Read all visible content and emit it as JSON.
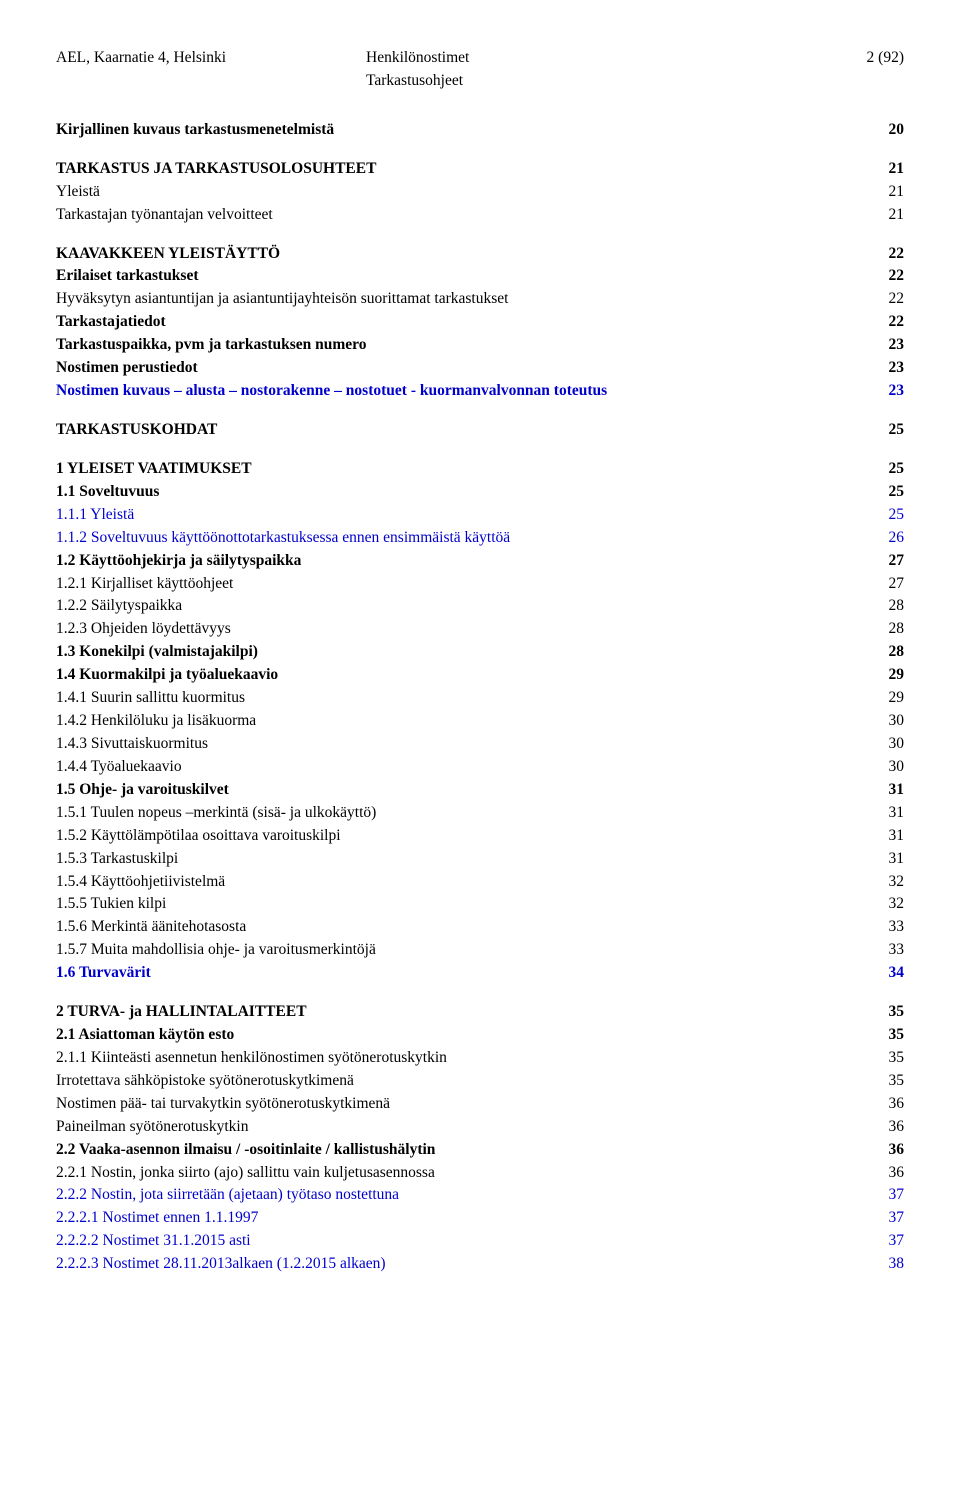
{
  "header": {
    "left": "AEL, Kaarnatie 4, Helsinki",
    "center1": "Henkilönostimet",
    "center2": "Tarkastusohjeet",
    "right": "2 (92)"
  },
  "entries": [
    {
      "label": "Kirjallinen kuvaus tarkastusmenetelmistä",
      "page": "20",
      "bold": true,
      "gap": "none",
      "blue": false
    },
    {
      "label": "TARKASTUS JA TARKASTUSOLOSUHTEET",
      "page": "21",
      "bold": true,
      "gap": "lg",
      "blue": false
    },
    {
      "label": "Yleistä",
      "page": "21",
      "bold": false,
      "gap": "sm",
      "blue": false
    },
    {
      "label": "Tarkastajan työnantajan velvoitteet",
      "page": "21",
      "bold": false,
      "gap": "sm",
      "blue": false
    },
    {
      "label": "KAAVAKKEEN YLEISTÄYTTÖ",
      "page": "22",
      "bold": true,
      "gap": "lg",
      "blue": false
    },
    {
      "label": "Erilaiset tarkastukset",
      "page": "22",
      "bold": true,
      "gap": "sm",
      "blue": false
    },
    {
      "label": "Hyväksytyn asiantuntijan ja asiantuntijayhteisön suorittamat tarkastukset",
      "page": "22",
      "bold": false,
      "gap": "sm",
      "blue": false
    },
    {
      "label": "Tarkastajatiedot",
      "page": "22",
      "bold": true,
      "gap": "sm",
      "blue": false
    },
    {
      "label": "Tarkastuspaikka, pvm ja tarkastuksen numero",
      "page": "23",
      "bold": true,
      "gap": "sm",
      "blue": false
    },
    {
      "label": "Nostimen perustiedot",
      "page": "23",
      "bold": true,
      "gap": "sm",
      "blue": false
    },
    {
      "label": "Nostimen kuvaus – alusta – nostorakenne – nostotuet - kuormanvalvonnan toteutus",
      "page": "23",
      "bold": true,
      "gap": "sm",
      "blue": true
    },
    {
      "label": "TARKASTUSKOHDAT",
      "page": "25",
      "bold": true,
      "gap": "lg",
      "blue": false
    },
    {
      "label": "1 YLEISET VAATIMUKSET",
      "page": "25",
      "bold": true,
      "gap": "lg",
      "blue": false
    },
    {
      "label": "1.1 Soveltuvuus",
      "page": "25",
      "bold": true,
      "gap": "sm",
      "blue": false
    },
    {
      "label": "1.1.1 Yleistä",
      "page": "25",
      "bold": false,
      "gap": "sm",
      "blue": true
    },
    {
      "label": "1.1.2 Soveltuvuus käyttöönottotarkastuksessa ennen ensimmäistä käyttöä",
      "page": "26",
      "bold": false,
      "gap": "sm",
      "blue": true
    },
    {
      "label": "1.2 Käyttöohjekirja ja säilytyspaikka",
      "page": "27",
      "bold": true,
      "gap": "sm",
      "blue": false
    },
    {
      "label": "1.2.1 Kirjalliset käyttöohjeet",
      "page": "27",
      "bold": false,
      "gap": "sm",
      "blue": false
    },
    {
      "label": "1.2.2 Säilytyspaikka",
      "page": "28",
      "bold": false,
      "gap": "sm",
      "blue": false
    },
    {
      "label": "1.2.3 Ohjeiden löydettävyys",
      "page": "28",
      "bold": false,
      "gap": "sm",
      "blue": false
    },
    {
      "label": "1.3 Konekilpi (valmistajakilpi)",
      "page": "28",
      "bold": true,
      "gap": "sm",
      "blue": false
    },
    {
      "label": "1.4 Kuormakilpi ja työaluekaavio",
      "page": "29",
      "bold": true,
      "gap": "sm",
      "blue": false
    },
    {
      "label": "1.4.1 Suurin sallittu kuormitus",
      "page": "29",
      "bold": false,
      "gap": "sm",
      "blue": false
    },
    {
      "label": "1.4.2 Henkilöluku ja lisäkuorma",
      "page": "30",
      "bold": false,
      "gap": "sm",
      "blue": false
    },
    {
      "label": "1.4.3 Sivuttaiskuormitus",
      "page": "30",
      "bold": false,
      "gap": "sm",
      "blue": false
    },
    {
      "label": "1.4.4 Työaluekaavio",
      "page": "30",
      "bold": false,
      "gap": "sm",
      "blue": false
    },
    {
      "label": "1.5 Ohje- ja varoituskilvet",
      "page": "31",
      "bold": true,
      "gap": "sm",
      "blue": false
    },
    {
      "label": "1.5.1 Tuulen nopeus –merkintä (sisä- ja ulkokäyttö)",
      "page": "31",
      "bold": false,
      "gap": "sm",
      "blue": false
    },
    {
      "label": "1.5.2 Käyttölämpötilaa osoittava varoituskilpi",
      "page": "31",
      "bold": false,
      "gap": "sm",
      "blue": false
    },
    {
      "label": "1.5.3 Tarkastuskilpi",
      "page": "31",
      "bold": false,
      "gap": "sm",
      "blue": false
    },
    {
      "label": "1.5.4 Käyttöohjetiivistelmä",
      "page": "32",
      "bold": false,
      "gap": "sm",
      "blue": false
    },
    {
      "label": "1.5.5 Tukien kilpi",
      "page": "32",
      "bold": false,
      "gap": "sm",
      "blue": false
    },
    {
      "label": "1.5.6 Merkintä äänitehotasosta",
      "page": "33",
      "bold": false,
      "gap": "sm",
      "blue": false
    },
    {
      "label": "1.5.7 Muita mahdollisia ohje- ja varoitusmerkintöjä",
      "page": "33",
      "bold": false,
      "gap": "sm",
      "blue": false
    },
    {
      "label": "1.6 Turvavärit",
      "page": "34",
      "bold": true,
      "gap": "sm",
      "blue": true
    },
    {
      "label": "2 TURVA- ja HALLINTALAITTEET",
      "page": "35",
      "bold": true,
      "gap": "lg",
      "blue": false
    },
    {
      "label": "2.1 Asiattoman käytön esto",
      "page": "35",
      "bold": true,
      "gap": "sm",
      "blue": false
    },
    {
      "label": "2.1.1 Kiinteästi asennetun henkilönostimen syötönerotuskytkin",
      "page": "35",
      "bold": false,
      "gap": "sm",
      "blue": false
    },
    {
      "label": "Irrotettava sähköpistoke syötönerotuskytkimenä",
      "page": "35",
      "bold": false,
      "gap": "sm",
      "blue": false
    },
    {
      "label": "Nostimen pää- tai turvakytkin syötönerotuskytkimenä",
      "page": "36",
      "bold": false,
      "gap": "sm",
      "blue": false
    },
    {
      "label": "Paineilman syötönerotuskytkin",
      "page": "36",
      "bold": false,
      "gap": "sm",
      "blue": false
    },
    {
      "label": "2.2 Vaaka-asennon ilmaisu / -osoitinlaite / kallistushälytin",
      "page": "36",
      "bold": true,
      "gap": "sm",
      "blue": false
    },
    {
      "label": "2.2.1 Nostin, jonka siirto (ajo) sallittu vain kuljetusasennossa",
      "page": "36",
      "bold": false,
      "gap": "sm",
      "blue": false
    },
    {
      "label": "2.2.2 Nostin, jota siirretään (ajetaan) työtaso nostettuna",
      "page": "37",
      "bold": false,
      "gap": "sm",
      "blue": true
    },
    {
      "label": "2.2.2.1 Nostimet ennen 1.1.1997",
      "page": "37",
      "bold": false,
      "gap": "sm",
      "blue": true
    },
    {
      "label": "2.2.2.2 Nostimet 31.1.2015 asti",
      "page": "37",
      "bold": false,
      "gap": "sm",
      "blue": true
    },
    {
      "label": "2.2.2.3 Nostimet 28.11.2013alkaen (1.2.2015 alkaen)",
      "page": "38",
      "bold": false,
      "gap": "sm",
      "blue": true
    }
  ]
}
